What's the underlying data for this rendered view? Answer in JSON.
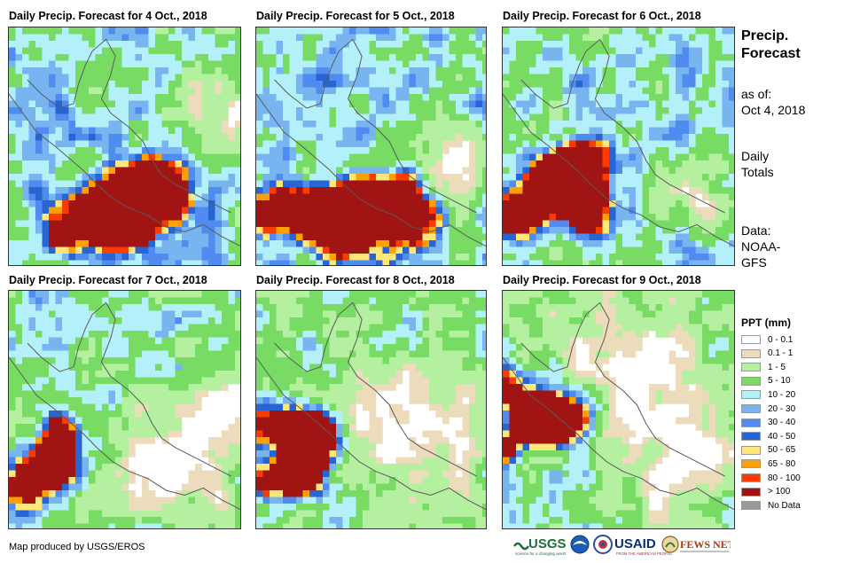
{
  "panels": [
    {
      "title": "Daily Precip. Forecast for 4 Oct., 2018"
    },
    {
      "title": "Daily Precip. Forecast for 5 Oct., 2018"
    },
    {
      "title": "Daily Precip. Forecast for 6 Oct., 2018"
    },
    {
      "title": "Daily Precip. Forecast for 7 Oct., 2018"
    },
    {
      "title": "Daily Precip. Forecast for 8 Oct., 2018"
    },
    {
      "title": "Daily Precip. Forecast for 9 Oct., 2018"
    }
  ],
  "side": {
    "title_line1": "Precip.",
    "title_line2": "Forecast",
    "asof_line1": "as of:",
    "asof_line2": "Oct 4, 2018",
    "daily_line1": "Daily",
    "daily_line2": "Totals",
    "data_line1": "Data:",
    "data_line2": "NOAA-",
    "data_line3": "GFS"
  },
  "legend": {
    "title": "PPT (mm)",
    "items": [
      {
        "label": "0 - 0.1",
        "color": "#ffffff"
      },
      {
        "label": "0.1 - 1",
        "color": "#eddcbc"
      },
      {
        "label": "1 - 5",
        "color": "#b4f0a0"
      },
      {
        "label": "5 - 10",
        "color": "#78dc64"
      },
      {
        "label": "10 - 20",
        "color": "#b4f0fa"
      },
      {
        "label": "20 - 30",
        "color": "#78b4f0"
      },
      {
        "label": "30 - 40",
        "color": "#508cf0"
      },
      {
        "label": "40 - 50",
        "color": "#2864d2"
      },
      {
        "label": "50 - 65",
        "color": "#ffe678"
      },
      {
        "label": "65 - 80",
        "color": "#ffa000"
      },
      {
        "label": "80 - 100",
        "color": "#fa3c00"
      },
      {
        "label": "> 100",
        "color": "#a01414"
      },
      {
        "label": "No Data",
        "color": "#9a9a9a"
      }
    ]
  },
  "credit": "Map produced by USGS/EROS",
  "logos": {
    "usgs": "USGS",
    "usgs_tagline": "science for a changing world",
    "usaid": "USAID",
    "usaid_tagline": "FROM THE AMERICAN PEOPLE",
    "fewsnet": "FEWS NET"
  }
}
